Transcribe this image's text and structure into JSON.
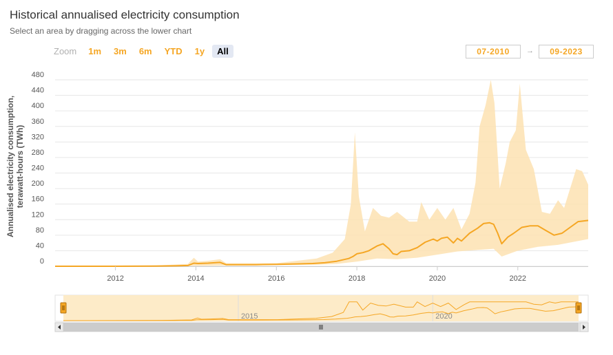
{
  "header": {
    "title": "Historical annualised electricity consumption",
    "subtitle": "Select an area by dragging across the lower chart"
  },
  "zoom": {
    "label": "Zoom",
    "buttons": [
      "1m",
      "3m",
      "6m",
      "YTD",
      "1y",
      "All"
    ],
    "active": "All"
  },
  "range": {
    "from": "07-2010",
    "arrow": "→",
    "to": "09-2023"
  },
  "colors": {
    "accent": "#f5a623",
    "band": "#fde2b2",
    "navigator_bg": "#fdebc8",
    "grid": "#e6e6e6"
  },
  "chart_data": {
    "type": "area",
    "ylabel_line1": "Annualised electricity consumption,",
    "ylabel_line2": "terawatt-hours (TWh)",
    "ylim": [
      0,
      480
    ],
    "yticks": [
      0,
      40,
      80,
      120,
      160,
      200,
      240,
      280,
      320,
      360,
      400,
      440,
      480
    ],
    "xlim": [
      2010.5,
      2023.75
    ],
    "xticks": [
      2012,
      2014,
      2016,
      2018,
      2020,
      2022
    ],
    "series": [
      {
        "kind": "line",
        "x": [
          2010.5,
          2011.0,
          2012.0,
          2013.0,
          2013.5,
          2013.8,
          2013.95,
          2014.05,
          2014.3,
          2014.6,
          2014.75,
          2015.0,
          2015.5,
          2016.0,
          2016.5,
          2016.9,
          2017.2,
          2017.5,
          2017.8,
          2017.9,
          2018.0,
          2018.15,
          2018.3,
          2018.5,
          2018.65,
          2018.8,
          2018.9,
          2019.0,
          2019.1,
          2019.3,
          2019.5,
          2019.7,
          2019.9,
          2020.0,
          2020.1,
          2020.25,
          2020.4,
          2020.5,
          2020.6,
          2020.8,
          2021.0,
          2021.15,
          2021.3,
          2021.4,
          2021.5,
          2021.6,
          2021.75,
          2021.9,
          2022.1,
          2022.3,
          2022.5,
          2022.7,
          2022.9,
          2023.1,
          2023.3,
          2023.5,
          2023.75
        ],
        "y": [
          0,
          0,
          0,
          0.5,
          1,
          2,
          8,
          7,
          8,
          10,
          4,
          4,
          4,
          5,
          6,
          7,
          9,
          13,
          20,
          25,
          32,
          35,
          40,
          52,
          58,
          45,
          32,
          30,
          38,
          40,
          48,
          62,
          70,
          65,
          72,
          75,
          60,
          72,
          65,
          85,
          98,
          110,
          112,
          108,
          85,
          58,
          75,
          85,
          100,
          104,
          104,
          92,
          80,
          85,
          100,
          115,
          118
        ]
      },
      {
        "kind": "band_upper",
        "x": [
          2010.5,
          2012.0,
          2013.0,
          2013.8,
          2013.95,
          2014.05,
          2014.3,
          2014.6,
          2014.75,
          2016.0,
          2016.5,
          2017.0,
          2017.4,
          2017.7,
          2017.85,
          2017.95,
          2018.05,
          2018.2,
          2018.4,
          2018.6,
          2018.8,
          2019.0,
          2019.3,
          2019.5,
          2019.6,
          2019.8,
          2020.0,
          2020.2,
          2020.4,
          2020.6,
          2020.8,
          2020.95,
          2021.05,
          2021.2,
          2021.33,
          2021.42,
          2021.55,
          2021.7,
          2021.8,
          2021.95,
          2022.05,
          2022.2,
          2022.4,
          2022.6,
          2022.8,
          2023.0,
          2023.15,
          2023.3,
          2023.45,
          2023.6,
          2023.75
        ],
        "y": [
          0,
          0.5,
          2,
          6,
          22,
          12,
          14,
          18,
          8,
          8,
          14,
          20,
          35,
          70,
          160,
          345,
          180,
          90,
          150,
          130,
          125,
          140,
          115,
          115,
          165,
          120,
          150,
          120,
          150,
          95,
          135,
          215,
          360,
          415,
          480,
          420,
          200,
          265,
          320,
          350,
          470,
          300,
          250,
          140,
          135,
          170,
          150,
          200,
          250,
          245,
          210
        ]
      },
      {
        "kind": "band_lower",
        "x": [
          2010.5,
          2014.0,
          2015.0,
          2016.0,
          2017.0,
          2017.5,
          2018.0,
          2018.5,
          2019.0,
          2019.5,
          2020.0,
          2020.5,
          2021.0,
          2021.4,
          2021.6,
          2022.0,
          2022.5,
          2023.0,
          2023.75
        ],
        "y": [
          0,
          1,
          2,
          3,
          4,
          6,
          12,
          20,
          18,
          22,
          30,
          38,
          42,
          45,
          25,
          40,
          50,
          55,
          70
        ]
      }
    ],
    "navigator": {
      "xticks": [
        2015,
        2020
      ],
      "range": [
        "07-2010",
        "09-2023"
      ]
    }
  }
}
